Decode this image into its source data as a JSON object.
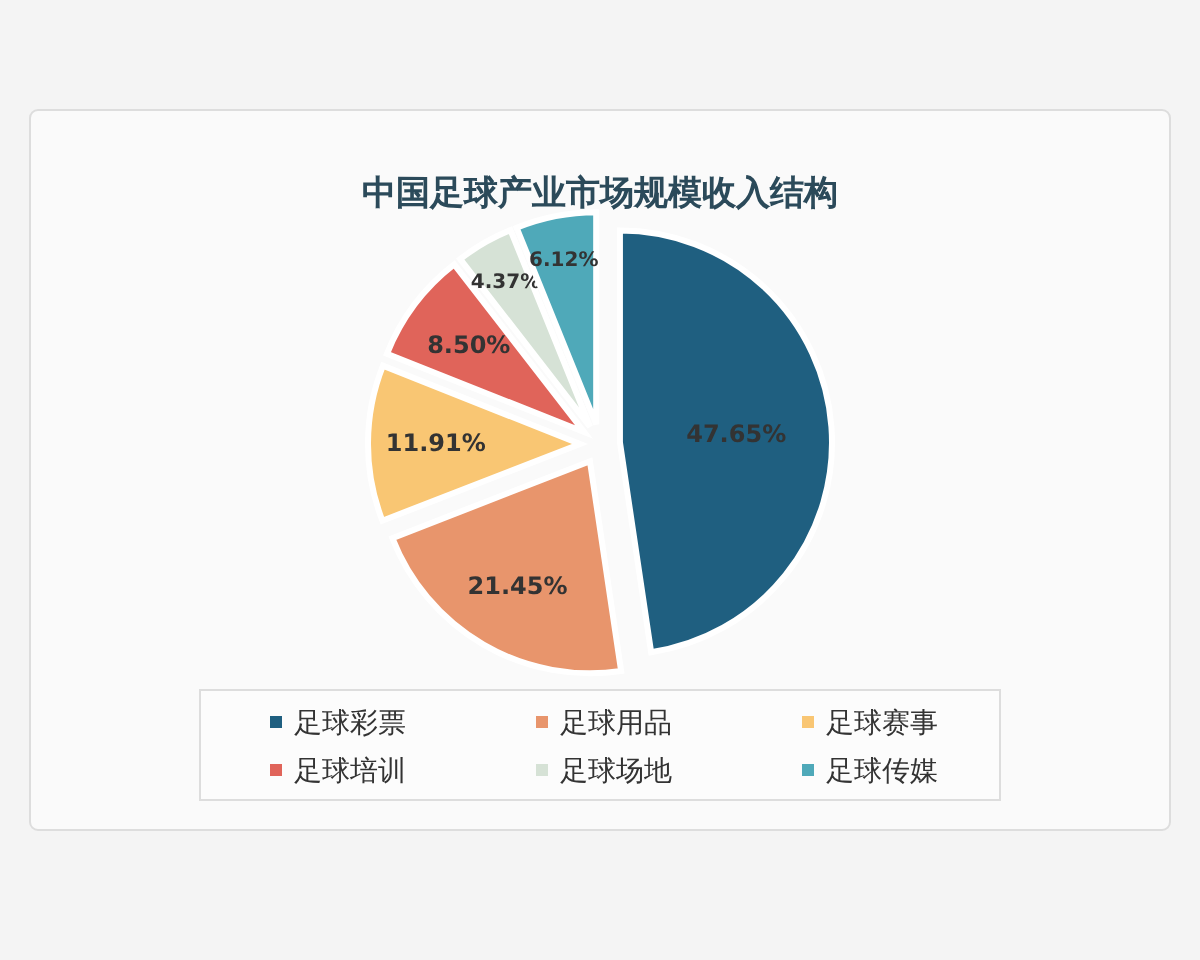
{
  "chart_data": {
    "type": "pie",
    "title": "中国足球产业市场规模收入结构",
    "categories": [
      "足球彩票",
      "足球用品",
      "足球赛事",
      "足球培训",
      "足球场地",
      "足球传媒"
    ],
    "values": [
      47.65,
      21.45,
      11.91,
      8.5,
      4.37,
      6.12
    ],
    "colors": [
      "#1f5f80",
      "#e8956c",
      "#f9c673",
      "#e0645a",
      "#d6e2d6",
      "#4fa9b9"
    ],
    "value_labels": [
      "47.65%",
      "21.45%",
      "11.91%",
      "8.50%",
      "4.37%",
      "6.12%"
    ],
    "legend": "bottom"
  }
}
